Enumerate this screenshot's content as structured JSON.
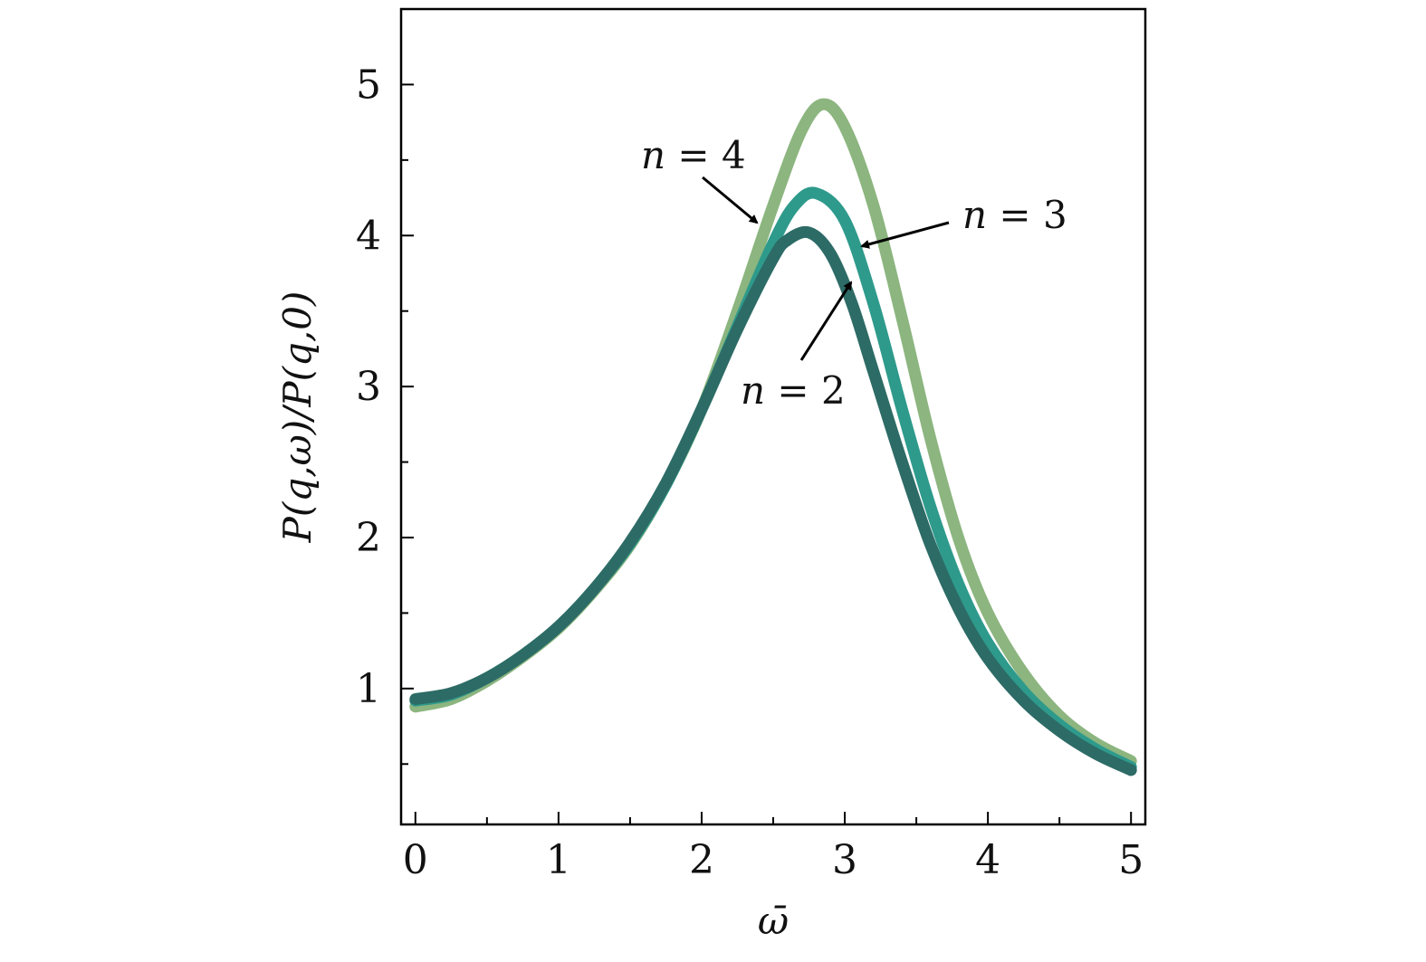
{
  "chart_data": {
    "type": "line",
    "title": "",
    "xlabel": "ω̄",
    "ylabel": "P(q,ω)/P(q,0)",
    "xlim": [
      -0.1,
      5.1
    ],
    "ylim": [
      0.1,
      5.5
    ],
    "xticks": [
      0,
      1,
      2,
      3,
      4,
      5
    ],
    "xtick_labels": [
      "0",
      "1",
      "2",
      "3",
      "4",
      "5"
    ],
    "yticks": [
      1,
      2,
      3,
      4,
      5
    ],
    "ytick_labels": [
      "1",
      "2",
      "3",
      "4",
      "5"
    ],
    "grid": false,
    "series": [
      {
        "name": "n = 4",
        "color": "#8cb57f",
        "x": [
          0,
          0.25,
          0.5,
          0.75,
          1.0,
          1.25,
          1.5,
          1.75,
          2.0,
          2.25,
          2.5,
          2.7,
          2.85,
          3.0,
          3.2,
          3.4,
          3.6,
          3.8,
          4.0,
          4.25,
          4.5,
          4.75,
          5.0
        ],
        "values": [
          0.88,
          0.93,
          1.05,
          1.21,
          1.4,
          1.65,
          1.95,
          2.35,
          2.85,
          3.5,
          4.2,
          4.7,
          4.87,
          4.72,
          4.2,
          3.45,
          2.65,
          1.98,
          1.5,
          1.1,
          0.82,
          0.64,
          0.52
        ]
      },
      {
        "name": "n = 3",
        "color": "#2e9a8c",
        "x": [
          0,
          0.25,
          0.5,
          0.75,
          1.0,
          1.25,
          1.5,
          1.75,
          2.0,
          2.25,
          2.5,
          2.65,
          2.8,
          3.0,
          3.2,
          3.4,
          3.6,
          3.8,
          4.0,
          4.25,
          4.5,
          4.75,
          5.0
        ],
        "values": [
          0.92,
          0.96,
          1.07,
          1.22,
          1.41,
          1.66,
          1.96,
          2.35,
          2.85,
          3.4,
          3.95,
          4.2,
          4.28,
          4.1,
          3.55,
          2.85,
          2.2,
          1.68,
          1.3,
          0.98,
          0.76,
          0.6,
          0.48
        ]
      },
      {
        "name": "n = 2",
        "color": "#2d6b66",
        "x": [
          0,
          0.25,
          0.5,
          0.75,
          1.0,
          1.25,
          1.5,
          1.75,
          2.0,
          2.25,
          2.5,
          2.6,
          2.75,
          2.9,
          3.05,
          3.2,
          3.4,
          3.6,
          3.8,
          4.0,
          4.25,
          4.5,
          4.75,
          5.0
        ],
        "values": [
          0.93,
          0.97,
          1.07,
          1.22,
          1.41,
          1.66,
          1.97,
          2.36,
          2.85,
          3.38,
          3.85,
          3.97,
          4.02,
          3.88,
          3.55,
          3.1,
          2.5,
          1.95,
          1.52,
          1.2,
          0.92,
          0.72,
          0.57,
          0.46
        ]
      }
    ],
    "annotations": [
      {
        "var": "n",
        "eq": " = ",
        "num": "4",
        "series": "n = 4"
      },
      {
        "var": "n",
        "eq": " = ",
        "num": "3",
        "series": "n = 3"
      },
      {
        "var": "n",
        "eq": " = ",
        "num": "2",
        "series": "n = 2"
      }
    ]
  }
}
